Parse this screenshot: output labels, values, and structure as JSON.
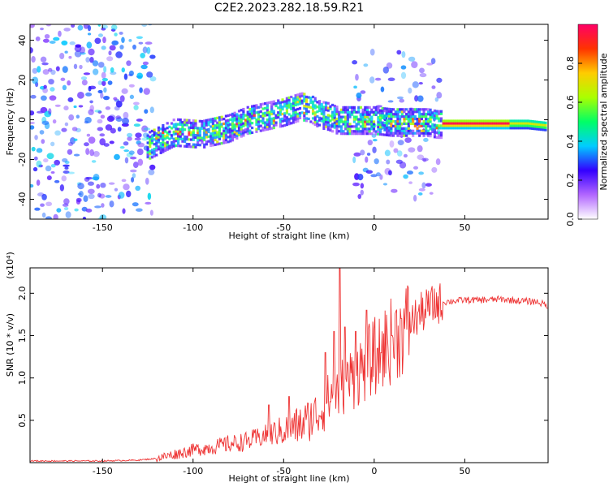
{
  "figure": {
    "title": "C2E2.2023.282.18.59.R21"
  },
  "chart_data": [
    {
      "type": "heatmap",
      "xlabel": "Height of straight line (km)",
      "ylabel": "Frequency (Hz)",
      "xlim": [
        -190,
        96
      ],
      "ylim": [
        -50,
        48
      ],
      "xticks": [
        -150,
        -100,
        -50,
        0,
        50
      ],
      "yticks": [
        -40,
        -20,
        0,
        20,
        40
      ],
      "colorbar": {
        "label": "Normalized spectral amplitude",
        "range": [
          0.0,
          1.0
        ],
        "ticks": [
          "0.0",
          "0.2",
          "0.4",
          "0.6",
          "0.8"
        ],
        "colormap": [
          "#ffffff",
          "#b266ff",
          "#3300ff",
          "#00ccff",
          "#00ff66",
          "#aaff00",
          "#ffcc00",
          "#ff3300",
          "#ff0066"
        ]
      },
      "ridge": {
        "x": [
          -125,
          -110,
          -95,
          -80,
          -70,
          -60,
          -50,
          -40,
          -35,
          -30,
          -25,
          -20,
          -15,
          -10,
          0,
          10,
          20,
          30,
          35,
          50,
          70,
          85,
          95
        ],
        "y": [
          -13,
          -6,
          -7,
          -4,
          0,
          2,
          4,
          7,
          6,
          3,
          2,
          0,
          0,
          0,
          0,
          -1,
          -1,
          -1,
          -2,
          -2,
          -2,
          -2,
          -3
        ]
      },
      "noise_bands": [
        {
          "x": [
            -190,
            -125
          ],
          "y": [
            -50,
            48
          ]
        },
        {
          "x": [
            -12,
            36
          ],
          "y": [
            -40,
            35
          ]
        }
      ]
    },
    {
      "type": "line",
      "xlabel": "Height of straight line (km)",
      "ylabel": "SNR (10 * v/v)",
      "y_multiplier": "(x10⁴)",
      "xlim": [
        -190,
        96
      ],
      "ylim": [
        0,
        2.3
      ],
      "xticks": [
        -150,
        -100,
        -50,
        0,
        50
      ],
      "yticks": [
        0.5,
        1.0,
        1.5,
        2.0
      ],
      "series": [
        {
          "color": "#ee3333",
          "x": [
            -190,
            -150,
            -130,
            -120,
            -110,
            -100,
            -90,
            -80,
            -70,
            -60,
            -50,
            -40,
            -30,
            -25,
            -20,
            -15,
            -10,
            -5,
            0,
            5,
            10,
            15,
            20,
            25,
            30,
            35,
            40,
            50,
            60,
            70,
            80,
            90,
            96
          ],
          "y": [
            0.02,
            0.02,
            0.03,
            0.05,
            0.1,
            0.15,
            0.18,
            0.22,
            0.25,
            0.32,
            0.38,
            0.45,
            0.6,
            0.75,
            0.85,
            0.95,
            1.05,
            1.15,
            1.25,
            1.35,
            1.45,
            1.55,
            1.65,
            1.75,
            1.83,
            1.88,
            1.9,
            1.92,
            1.92,
            1.93,
            1.91,
            1.9,
            1.85
          ],
          "spikes": [
            {
              "x": -58,
              "y": 0.68
            },
            {
              "x": -47,
              "y": 0.78
            },
            {
              "x": -27,
              "y": 1.3
            },
            {
              "x": -22,
              "y": 1.55
            },
            {
              "x": -19,
              "y": 2.3
            },
            {
              "x": -16,
              "y": 1.6
            },
            {
              "x": -10,
              "y": 1.55
            },
            {
              "x": -4,
              "y": 1.8
            },
            {
              "x": 2,
              "y": 1.35
            },
            {
              "x": 10,
              "y": 1.5
            },
            {
              "x": 15,
              "y": 1.7
            }
          ]
        }
      ]
    }
  ]
}
